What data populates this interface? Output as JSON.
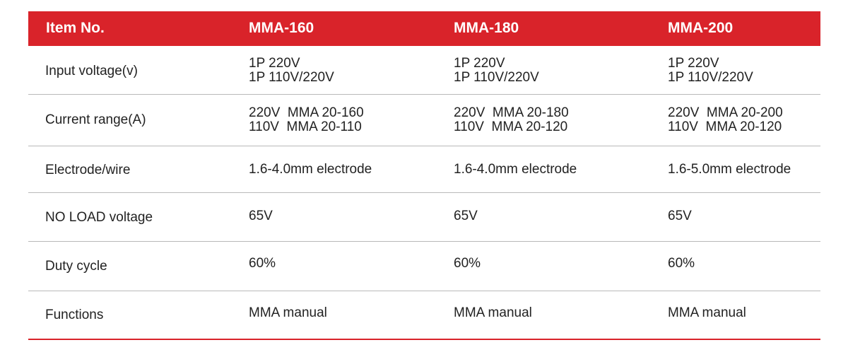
{
  "table": {
    "header": {
      "label": "Item No.",
      "models": [
        "MMA-160",
        "MMA-180",
        "MMA-200"
      ]
    },
    "rows": [
      {
        "label": "Input voltage(v)",
        "values": [
          [
            "1P 220V",
            "1P 110V/220V"
          ],
          [
            "1P 220V",
            "1P 110V/220V"
          ],
          [
            "1P 220V",
            "1P 110V/220V"
          ]
        ]
      },
      {
        "label": "Current range(A)",
        "values": [
          [
            "220V  MMA 20-160",
            "110V  MMA 20-110"
          ],
          [
            "220V  MMA 20-180",
            "110V  MMA 20-120"
          ],
          [
            "220V  MMA 20-200",
            "110V  MMA 20-120"
          ]
        ]
      },
      {
        "label": "Electrode/wire",
        "values": [
          [
            "1.6-4.0mm electrode"
          ],
          [
            "1.6-4.0mm electrode"
          ],
          [
            "1.6-5.0mm electrode"
          ]
        ]
      },
      {
        "label": "NO LOAD voltage",
        "values": [
          [
            "65V"
          ],
          [
            "65V"
          ],
          [
            "65V"
          ]
        ]
      },
      {
        "label": "Duty cycle",
        "values": [
          [
            "60%"
          ],
          [
            "60%"
          ],
          [
            "60%"
          ]
        ]
      },
      {
        "label": "Functions",
        "values": [
          [
            "MMA manual"
          ],
          [
            "MMA manual"
          ],
          [
            "MMA manual"
          ]
        ]
      }
    ]
  },
  "colors": {
    "header_bg": "#d9232a",
    "header_text": "#ffffff",
    "body_text": "#222222",
    "row_divider": "#b9b9b9",
    "bottom_rule": "#d9232a"
  }
}
